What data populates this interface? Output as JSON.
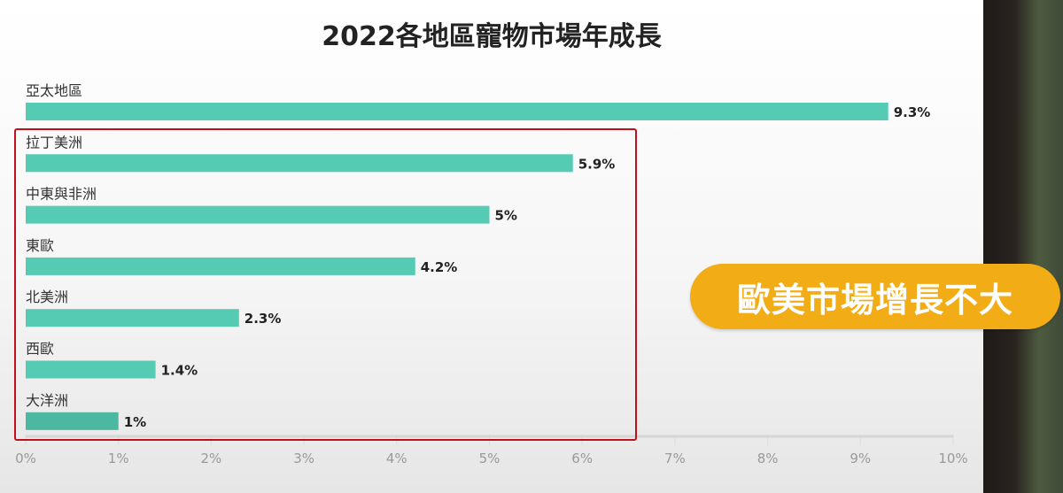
{
  "chart_data": {
    "type": "bar",
    "orientation": "horizontal",
    "title": "2022各地區寵物市場年成長",
    "categories": [
      "亞太地區",
      "拉丁美洲",
      "中東與非洲",
      "東歐",
      "北美洲",
      "西歐",
      "大洋洲"
    ],
    "values": [
      9.3,
      5.9,
      5,
      4.2,
      2.3,
      1.4,
      1
    ],
    "value_labels": [
      "9.3%",
      "5.9%",
      "5%",
      "4.2%",
      "2.3%",
      "1.4%",
      "1%"
    ],
    "xlim": [
      0,
      10
    ],
    "x_ticks": [
      "0%",
      "1%",
      "2%",
      "3%",
      "4%",
      "5%",
      "6%",
      "7%",
      "8%",
      "9%",
      "10%"
    ],
    "grid": true,
    "bar_color": "#55cbb4",
    "highlight_color": "#c0101e",
    "highlighted_categories": [
      "拉丁美洲",
      "中東與非洲",
      "東歐",
      "北美洲",
      "西歐",
      "大洋洲"
    ]
  },
  "callout": {
    "text": "歐美市場增長不大",
    "color": "#f2ac16"
  }
}
